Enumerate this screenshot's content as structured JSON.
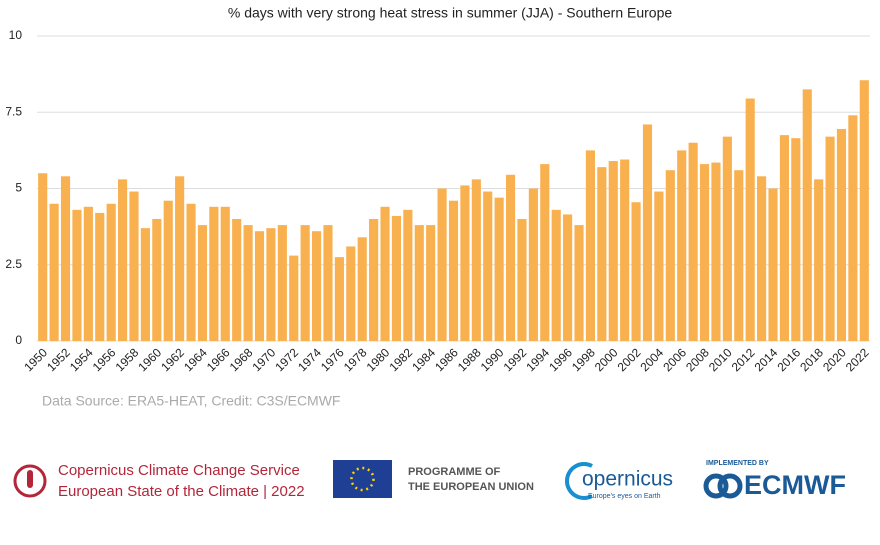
{
  "chart_data": {
    "type": "bar",
    "title": "% days with very strong heat stress in summer (JJA) - Southern Europe",
    "categories": [
      "1950",
      null,
      "1952",
      null,
      "1954",
      null,
      "1956",
      null,
      "1958",
      null,
      "1960",
      null,
      "1962",
      null,
      "1964",
      null,
      "1966",
      null,
      "1968",
      null,
      "1970",
      null,
      "1972",
      null,
      "1974",
      null,
      "1976",
      null,
      "1978",
      null,
      "1980",
      null,
      "1982",
      null,
      "1984",
      null,
      "1986",
      null,
      "1988",
      null,
      "1990",
      null,
      "1992",
      null,
      "1994",
      null,
      "1996",
      null,
      "1998",
      null,
      "2000",
      null,
      "2002",
      null,
      "2004",
      null,
      "2006",
      null,
      "2008",
      null,
      "2010",
      null,
      "2012",
      null,
      "2014",
      null,
      "2016",
      null,
      "2018",
      null,
      "2020",
      null,
      "2022"
    ],
    "values": [
      5.5,
      4.5,
      5.4,
      4.3,
      4.4,
      4.2,
      4.5,
      5.3,
      4.9,
      3.7,
      4.0,
      4.6,
      5.4,
      4.5,
      3.8,
      4.4,
      4.4,
      4.0,
      3.8,
      3.6,
      3.7,
      3.8,
      2.8,
      3.8,
      3.6,
      3.8,
      2.75,
      3.1,
      3.4,
      4.0,
      4.4,
      4.1,
      4.3,
      3.8,
      3.8,
      5.0,
      4.6,
      5.1,
      5.3,
      4.9,
      4.7,
      5.45,
      4.0,
      5.0,
      5.8,
      4.3,
      4.15,
      3.8,
      6.25,
      5.7,
      5.9,
      5.95,
      4.55,
      7.1,
      4.9,
      5.6,
      6.25,
      6.5,
      5.8,
      5.85,
      6.7,
      5.6,
      7.95,
      5.4,
      5.0,
      6.75,
      6.65,
      8.25,
      5.3,
      6.7,
      6.95,
      7.4,
      8.55
    ],
    "color": "#f9b04f",
    "ylim": [
      0,
      10
    ],
    "yticks": [
      0,
      2.5,
      5,
      7.5,
      10
    ],
    "grid": true,
    "source": "Data Source: ERA5-HEAT, Credit: C3S/ECMWF"
  },
  "footer": {
    "c3s_line1": "Copernicus Climate Change Service",
    "c3s_line2": "European State of the Climate | 2022",
    "eu_line1": "PROGRAMME OF",
    "eu_line2": "THE EUROPEAN UNION",
    "copernicus": "opernicus",
    "copernicus_tagline": "Europe's eyes on Earth",
    "implemented": "IMPLEMENTED BY",
    "ecmwf": "ECMWF"
  }
}
